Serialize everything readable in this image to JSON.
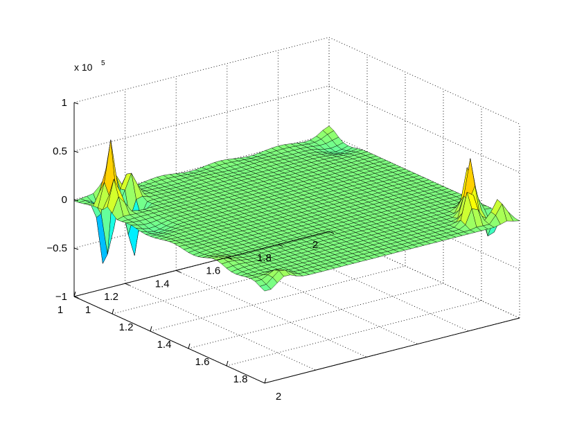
{
  "chart_data": {
    "type": "surface",
    "title": "",
    "xlabel": "",
    "ylabel": "",
    "zlabel": "",
    "xlim": [
      1,
      2
    ],
    "ylim": [
      1,
      2
    ],
    "zlim": [
      -100000,
      100000
    ],
    "grid": true,
    "colormap": "jet",
    "z_exponent_label": {
      "base": "x 10",
      "power": "5"
    },
    "x_ticks": [
      "1",
      "1.2",
      "1.4",
      "1.6",
      "1.8",
      "2"
    ],
    "y_ticks": [
      "1",
      "1.2",
      "1.4",
      "1.6",
      "1.8",
      "2"
    ],
    "z_ticks": [
      "−1",
      "−0.5",
      "0",
      "0.5",
      "1"
    ],
    "x_tick_values": [
      1,
      1.2,
      1.4,
      1.6,
      1.8,
      2
    ],
    "y_tick_values": [
      1,
      1.2,
      1.4,
      1.6,
      1.8,
      2
    ],
    "z_tick_values": [
      -100000,
      -50000,
      0,
      50000,
      100000
    ],
    "mesh_resolution": 40,
    "baseline": 0,
    "features": [
      {
        "x": 1.0,
        "y": 2.0,
        "amplitude": 8000,
        "sigma": 0.035
      },
      {
        "x": 1.1,
        "y": 1.95,
        "amplitude": -6000,
        "sigma": 0.04
      },
      {
        "x": 1.06,
        "y": 1.08,
        "amplitude": -82000,
        "sigma": 0.018
      },
      {
        "x": 1.12,
        "y": 1.05,
        "amplitude": 72000,
        "sigma": 0.018
      },
      {
        "x": 1.03,
        "y": 1.12,
        "amplitude": 45000,
        "sigma": 0.018
      },
      {
        "x": 1.15,
        "y": 1.12,
        "amplitude": -55000,
        "sigma": 0.018
      },
      {
        "x": 1.18,
        "y": 1.03,
        "amplitude": 38000,
        "sigma": 0.018
      },
      {
        "x": 1.09,
        "y": 1.15,
        "amplitude": 30000,
        "sigma": 0.02
      },
      {
        "x": 1.88,
        "y": 1.9,
        "amplitude": 62000,
        "sigma": 0.018
      },
      {
        "x": 1.83,
        "y": 1.93,
        "amplitude": 48000,
        "sigma": 0.018
      },
      {
        "x": 1.93,
        "y": 1.86,
        "amplitude": 40000,
        "sigma": 0.018
      },
      {
        "x": 1.9,
        "y": 1.96,
        "amplitude": -25000,
        "sigma": 0.02
      },
      {
        "x": 1.96,
        "y": 1.95,
        "amplitude": 25000,
        "sigma": 0.02
      },
      {
        "x": 1.97,
        "y": 1.08,
        "amplitude": 10000,
        "sigma": 0.03
      },
      {
        "x": 2.0,
        "y": 1.02,
        "amplitude": -6000,
        "sigma": 0.03
      },
      {
        "x": 1.35,
        "y": 1.05,
        "amplitude": -5000,
        "sigma": 0.04
      },
      {
        "x": 1.75,
        "y": 1.03,
        "amplitude": 4000,
        "sigma": 0.04
      }
    ]
  }
}
